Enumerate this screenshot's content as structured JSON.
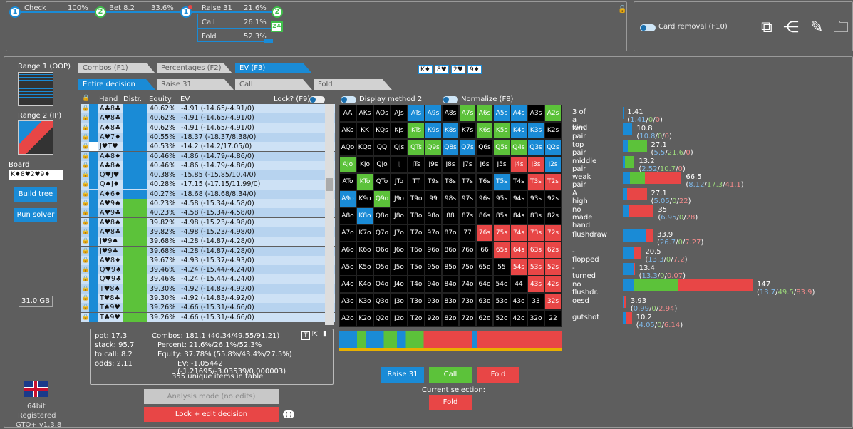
{
  "tree": {
    "n1": "1",
    "check": "Check",
    "check_pct": "100%",
    "n2": "2",
    "bet": "Bet 8.2",
    "bet_pct": "33.6%",
    "n3": "1",
    "raise": "Raise 31",
    "raise_pct": "21.6%",
    "n4": "2",
    "call": "Call",
    "call_pct": "26.1%",
    "n5": "2",
    "fold": "Fold",
    "fold_pct": "52.3%"
  },
  "card_removal": "Card removal (F10)",
  "sidebar": {
    "range1": "Range 1 (OOP)",
    "range2": "Range 2 (IP)",
    "board_label": "Board",
    "board_cards": "K♦8♥2♥9♦",
    "build_tree": "Build tree",
    "run_solver": "Run solver",
    "memory": "31.0 GB",
    "bits": "64bit",
    "registered": "Registered",
    "version": "GTO+ v1.3.8"
  },
  "tabs": {
    "combos": "Combos (F1)",
    "percentages": "Percentages (F2)",
    "ev": "EV (F3)",
    "entire": "Entire decision",
    "raise": "Raise 31",
    "call": "Call",
    "fold": "Fold"
  },
  "board_display": [
    "K♦",
    "8♥",
    "2♥",
    "9♦"
  ],
  "table_header": {
    "hand": "Hand",
    "distr": "Distr.",
    "equity": "Equity",
    "ev": "EV",
    "lock": "Lock? (F9)"
  },
  "rows": [
    {
      "hand": "A♣8♣",
      "equity": "40.62%",
      "ev": "-4.91 (-14.65/-4.91/0)"
    },
    {
      "hand": "A♥8♣",
      "equity": "40.62%",
      "ev": "-4.91 (-14.65/-4.91/0)"
    },
    {
      "hand": "A♠8♣",
      "equity": "40.62%",
      "ev": "-4.91 (-14.65/-4.91/0)"
    },
    {
      "hand": "A♥7♦",
      "equity": "40.55%",
      "ev": "-18.37 (-18.37/8.38/0)"
    },
    {
      "hand": "J♥T♥",
      "equity": "40.53%",
      "ev": "-14.2 (-14.2/17.05/0)"
    },
    {
      "hand": "A♣8♦",
      "equity": "40.46%",
      "ev": "-4.86 (-14.79/-4.86/0)"
    },
    {
      "hand": "A♣8♠",
      "equity": "40.46%",
      "ev": "-4.86 (-14.79/-4.86/0)"
    },
    {
      "hand": "Q♥J♥",
      "equity": "40.38%",
      "ev": "-15.85 (-15.85/10.4/0)"
    },
    {
      "hand": "Q♠J♦",
      "equity": "40.28%",
      "ev": "-17.15 (-17.15/11.99/0)"
    },
    {
      "hand": "A♦6♦",
      "equity": "40.27%",
      "ev": "-18.68 (-18.68/8.34/0)"
    },
    {
      "hand": "A♥9♠",
      "equity": "40.23%",
      "ev": "-4.58 (-15.34/-4.58/0)"
    },
    {
      "hand": "A♥9♣",
      "equity": "40.23%",
      "ev": "-4.58 (-15.34/-4.58/0)"
    },
    {
      "hand": "A♥8♠",
      "equity": "39.82%",
      "ev": "-4.98 (-15.23/-4.98/0)"
    },
    {
      "hand": "A♥8♣",
      "equity": "39.82%",
      "ev": "-4.98 (-15.23/-4.98/0)"
    },
    {
      "hand": "J♥9♠",
      "equity": "39.68%",
      "ev": "-4.28 (-14.87/-4.28/0)"
    },
    {
      "hand": "J♥9♣",
      "equity": "39.68%",
      "ev": "-4.28 (-14.87/-4.28/0)"
    },
    {
      "hand": "A♥8♦",
      "equity": "39.67%",
      "ev": "-4.93 (-15.37/-4.93/0)"
    },
    {
      "hand": "Q♥9♠",
      "equity": "39.46%",
      "ev": "-4.24 (-15.44/-4.24/0)"
    },
    {
      "hand": "Q♥9♣",
      "equity": "39.46%",
      "ev": "-4.24 (-15.44/-4.24/0)"
    },
    {
      "hand": "T♥8♠",
      "equity": "39.30%",
      "ev": "-4.92 (-14.83/-4.92/0)"
    },
    {
      "hand": "T♥8♣",
      "equity": "39.30%",
      "ev": "-4.92 (-14.83/-4.92/0)"
    },
    {
      "hand": "T♠9♥",
      "equity": "39.26%",
      "ev": "-4.66 (-15.31/-4.66/0)"
    },
    {
      "hand": "T♣9♥",
      "equity": "39.26%",
      "ev": "-4.66 (-15.31/-4.66/0)"
    }
  ],
  "stats": {
    "pot": "pot: 17.3",
    "stack": "stack: 95.7",
    "to_call": "to call: 8.2",
    "odds": "odds: 2.11",
    "combos": "Combos: 181.1 (40.34/49.55/91.21)",
    "percent": "Percent: 21.6%/26.1%/52.3%",
    "equity": "Equity: 37.78% (55.8%/43.4%/27.5%)",
    "ev": "EV: -1.05442 (-1.21695/-3.03539/0.000003)",
    "unique": "355 unique items in table"
  },
  "buttons": {
    "analysis": "Analysis mode (no edits)",
    "lock_edit": "Lock + edit decision",
    "raise": "Raise 31",
    "call": "Call",
    "fold": "Fold",
    "current_sel": "Current selection:",
    "sel_value": "Fold"
  },
  "matrix_controls": {
    "display": "Display method 2",
    "normalize": "Normalize (F8)"
  },
  "matrix": [
    [
      "AA",
      "AKs",
      "AQs",
      "AJs",
      "ATs",
      "A9s",
      "A8s",
      "A7s",
      "A6s",
      "A5s",
      "A4s",
      "A3s",
      "A2s"
    ],
    [
      "AKo",
      "KK",
      "KQs",
      "KJs",
      "KTs",
      "K9s",
      "K8s",
      "K7s",
      "K6s",
      "K5s",
      "K4s",
      "K3s",
      "K2s"
    ],
    [
      "AQo",
      "KQo",
      "QQ",
      "QJs",
      "QTs",
      "Q9s",
      "Q8s",
      "Q7s",
      "Q6s",
      "Q5s",
      "Q4s",
      "Q3s",
      "Q2s"
    ],
    [
      "AJo",
      "KJo",
      "QJo",
      "JJ",
      "JTs",
      "J9s",
      "J8s",
      "J7s",
      "J6s",
      "J5s",
      "J4s",
      "J3s",
      "J2s"
    ],
    [
      "ATo",
      "KTo",
      "QTo",
      "JTo",
      "TT",
      "T9s",
      "T8s",
      "T7s",
      "T6s",
      "T5s",
      "T4s",
      "T3s",
      "T2s"
    ],
    [
      "A9o",
      "K9o",
      "Q9o",
      "J9o",
      "T9o",
      "99",
      "98s",
      "97s",
      "96s",
      "95s",
      "94s",
      "93s",
      "92s"
    ],
    [
      "A8o",
      "K8o",
      "Q8o",
      "J8o",
      "T8o",
      "98o",
      "88",
      "87s",
      "86s",
      "85s",
      "84s",
      "83s",
      "82s"
    ],
    [
      "A7o",
      "K7o",
      "Q7o",
      "J7o",
      "T7o",
      "97o",
      "87o",
      "77",
      "76s",
      "75s",
      "74s",
      "73s",
      "72s"
    ],
    [
      "A6o",
      "K6o",
      "Q6o",
      "J6o",
      "T6o",
      "96o",
      "86o",
      "76o",
      "66",
      "65s",
      "64s",
      "63s",
      "62s"
    ],
    [
      "A5o",
      "K5o",
      "Q5o",
      "J5o",
      "T5o",
      "95o",
      "85o",
      "75o",
      "65o",
      "55",
      "54s",
      "53s",
      "52s"
    ],
    [
      "A4o",
      "K4o",
      "Q4o",
      "J4o",
      "T4o",
      "94o",
      "84o",
      "74o",
      "64o",
      "54o",
      "44",
      "43s",
      "42s"
    ],
    [
      "A3o",
      "K3o",
      "Q3o",
      "J3o",
      "T3o",
      "93o",
      "83o",
      "73o",
      "63o",
      "53o",
      "43o",
      "33",
      "32s"
    ],
    [
      "A2o",
      "K2o",
      "Q2o",
      "J2o",
      "T2o",
      "92o",
      "82o",
      "72o",
      "62o",
      "52o",
      "42o",
      "32o",
      "22"
    ]
  ],
  "categories": [
    {
      "name": "3 of a kind",
      "value": "1.41",
      "parts": [
        "1.41",
        "0",
        "0"
      ],
      "raise": 0.1,
      "call": 0,
      "fold": 0
    },
    {
      "name": "two pair",
      "value": "10.8",
      "parts": [
        "10.8",
        "0",
        "0"
      ],
      "raise": 1,
      "call": 0,
      "fold": 0
    },
    {
      "name": "top pair",
      "value": "27.1",
      "parts": [
        "5.5",
        "21.6",
        "0"
      ],
      "raise": 0.2,
      "call": 0.8,
      "fold": 0
    },
    {
      "name": "middle pair",
      "value": "13.2",
      "parts": [
        "2.52",
        "10.7",
        "0"
      ],
      "raise": 0.19,
      "call": 0.81,
      "fold": 0
    },
    {
      "name": "weak pair",
      "value": "66.5",
      "parts": [
        "8.12",
        "17.3",
        "41.1"
      ],
      "raise": 0.12,
      "call": 0.26,
      "fold": 0.62
    },
    {
      "name": "A high",
      "value": "27.1",
      "parts": [
        "5.05",
        "0",
        "22"
      ],
      "raise": 0.19,
      "call": 0,
      "fold": 0.81
    },
    {
      "name": "no made hand",
      "value": "35",
      "parts": [
        "6.95",
        "0",
        "28"
      ],
      "raise": 0.2,
      "call": 0,
      "fold": 0.8
    },
    {
      "name": "flushdraw",
      "value": "33.9",
      "parts": [
        "26.7",
        "0",
        "7.27"
      ],
      "raise": 0.79,
      "call": 0,
      "fold": 0.21
    },
    {
      "name": "-flopped",
      "value": "20.5",
      "parts": [
        "13.3",
        "0",
        "7.2"
      ],
      "raise": 0.65,
      "call": 0,
      "fold": 0.35
    },
    {
      "name": "-turned",
      "value": "13.4",
      "parts": [
        "13.3",
        "0",
        "0.07"
      ],
      "raise": 0.99,
      "call": 0,
      "fold": 0.01
    },
    {
      "name": "no flushdr.",
      "value": "147",
      "parts": [
        "13.7",
        "49.5",
        "83.9"
      ],
      "raise": 0.09,
      "call": 0.34,
      "fold": 0.57
    },
    {
      "name": "oesd",
      "value": "3.93",
      "parts": [
        "0.99",
        "0",
        "2.94"
      ],
      "raise": 0.25,
      "call": 0,
      "fold": 0.75
    },
    {
      "name": "gutshot",
      "value": "10.2",
      "parts": [
        "4.05",
        "0",
        "6.14"
      ],
      "raise": 0.4,
      "call": 0,
      "fold": 0.6
    }
  ],
  "colors": {
    "raise": "#1a8bd6",
    "call": "#5cc23a",
    "fold": "#e84646",
    "accent": "#1a8bd6"
  }
}
